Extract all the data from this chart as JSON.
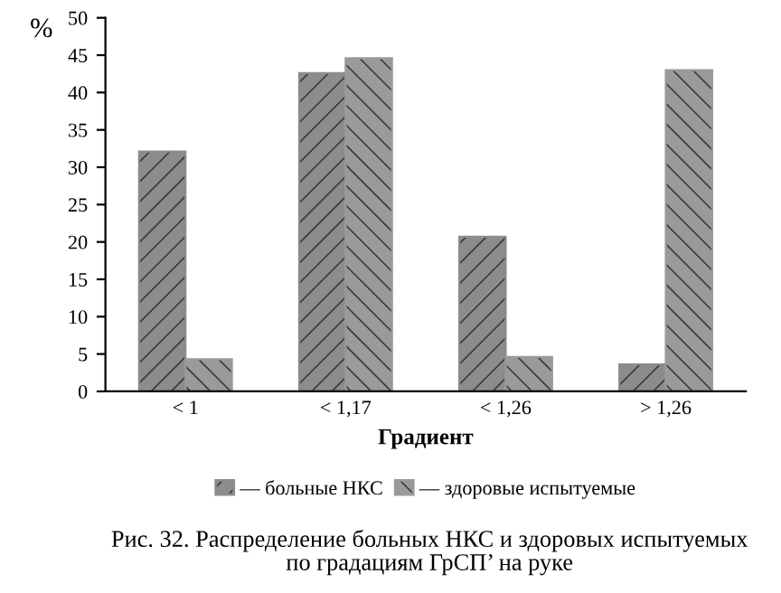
{
  "chart_data": {
    "type": "bar",
    "xlabel": "Градиент",
    "ylabel": "%",
    "categories": [
      "< 1",
      "< 1,17",
      "< 1,26",
      "> 1,26"
    ],
    "series": [
      {
        "name": "— больные НКС",
        "color": "#8c8c8c",
        "values": [
          32.1,
          42.6,
          20.7,
          3.6
        ]
      },
      {
        "name": "— здоровые испытуемые",
        "color": "#9a9a9a",
        "values": [
          4.3,
          44.6,
          4.6,
          43.0
        ]
      }
    ],
    "ylim": [
      0,
      50
    ],
    "yticks": [
      0,
      5,
      10,
      15,
      20,
      25,
      30,
      35,
      40,
      45,
      50
    ],
    "grid": false,
    "legend": "bottom",
    "annotations": [
      "Рис. 32. Распределение больных НКС и здоровых испытуемых\nпо градациям ГрСП’ на руке"
    ]
  }
}
